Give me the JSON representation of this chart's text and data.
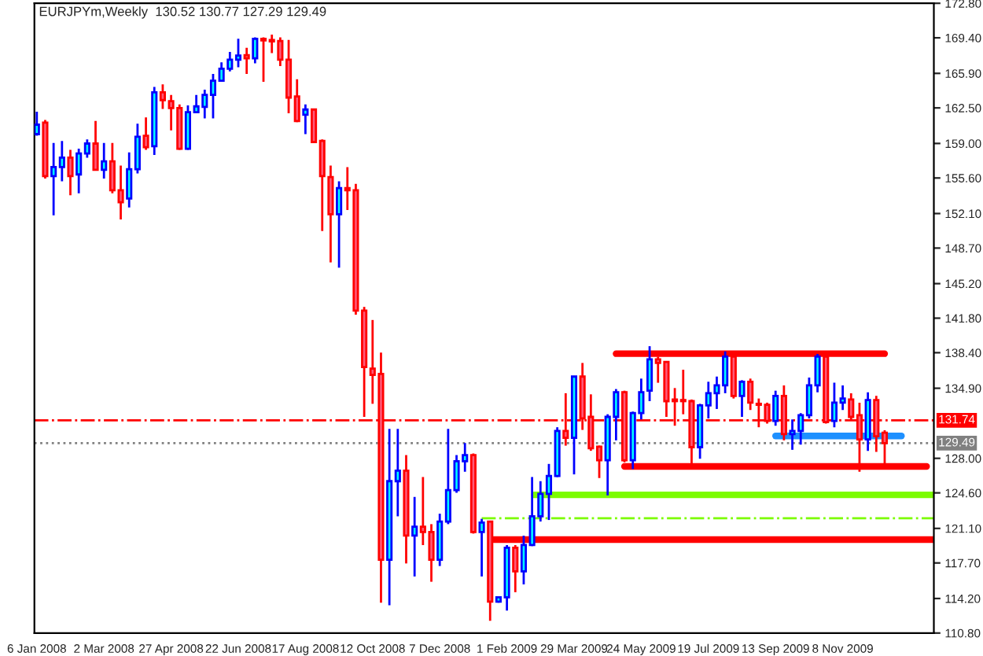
{
  "chart_data": {
    "type": "candlestick",
    "title": "EURJPYm,Weekly  130.52 130.77 127.29 129.49",
    "x": [
      "2008-01-06",
      "2008-01-13",
      "2008-01-20",
      "2008-01-27",
      "2008-02-03",
      "2008-02-10",
      "2008-02-17",
      "2008-02-24",
      "2008-03-02",
      "2008-03-09",
      "2008-03-16",
      "2008-03-23",
      "2008-03-30",
      "2008-04-06",
      "2008-04-13",
      "2008-04-20",
      "2008-04-27",
      "2008-05-04",
      "2008-05-11",
      "2008-05-18",
      "2008-05-25",
      "2008-06-01",
      "2008-06-08",
      "2008-06-15",
      "2008-06-22",
      "2008-06-29",
      "2008-07-06",
      "2008-07-13",
      "2008-07-20",
      "2008-07-27",
      "2008-08-03",
      "2008-08-10",
      "2008-08-17",
      "2008-08-24",
      "2008-08-31",
      "2008-09-07",
      "2008-09-14",
      "2008-09-21",
      "2008-09-28",
      "2008-10-05",
      "2008-10-12",
      "2008-10-19",
      "2008-10-26",
      "2008-11-02",
      "2008-11-09",
      "2008-11-16",
      "2008-11-23",
      "2008-11-30",
      "2008-12-07",
      "2008-12-14",
      "2008-12-21",
      "2008-12-28",
      "2009-01-04",
      "2009-01-11",
      "2009-01-18",
      "2009-01-25",
      "2009-02-01",
      "2009-02-08",
      "2009-02-15",
      "2009-02-22",
      "2009-03-01",
      "2009-03-08",
      "2009-03-15",
      "2009-03-22",
      "2009-03-29",
      "2009-04-05",
      "2009-04-12",
      "2009-04-19",
      "2009-04-26",
      "2009-05-03",
      "2009-05-10",
      "2009-05-17",
      "2009-05-24",
      "2009-05-31",
      "2009-06-07",
      "2009-06-14",
      "2009-06-21",
      "2009-06-28",
      "2009-07-05",
      "2009-07-12",
      "2009-07-19",
      "2009-07-26",
      "2009-08-02",
      "2009-08-09",
      "2009-08-16",
      "2009-08-23",
      "2009-08-30",
      "2009-09-06",
      "2009-09-13",
      "2009-09-20",
      "2009-09-27",
      "2009-10-04",
      "2009-10-11",
      "2009-10-18",
      "2009-10-25",
      "2009-11-01",
      "2009-11-08",
      "2009-11-15",
      "2009-11-22",
      "2009-11-29",
      "2009-12-06",
      "2009-12-13"
    ],
    "ohlc": [
      [
        159.92,
        162.13,
        159.76,
        160.85
      ],
      [
        161.05,
        161.31,
        155.54,
        155.79
      ],
      [
        155.79,
        159.04,
        151.93,
        156.67
      ],
      [
        156.67,
        159.25,
        155.28,
        157.6
      ],
      [
        157.6,
        158.37,
        153.89,
        155.79
      ],
      [
        155.95,
        158.48,
        154.09,
        158.01
      ],
      [
        158.01,
        159.4,
        157.6,
        158.99
      ],
      [
        158.99,
        161.21,
        156.31,
        156.41
      ],
      [
        156.41,
        159.04,
        155.54,
        157.24
      ],
      [
        157.24,
        159.04,
        154.09,
        154.4
      ],
      [
        154.4,
        156.82,
        151.52,
        153.22
      ],
      [
        153.58,
        158.11,
        152.7,
        156.46
      ],
      [
        156.46,
        160.95,
        156.05,
        159.66
      ],
      [
        159.76,
        161.57,
        158.37,
        158.63
      ],
      [
        158.73,
        164.56,
        157.86,
        164.04
      ],
      [
        164.04,
        164.81,
        162.39,
        163.27
      ],
      [
        163.16,
        163.78,
        160.28,
        162.49
      ],
      [
        162.49,
        162.85,
        158.37,
        158.48
      ],
      [
        158.48,
        162.75,
        158.37,
        162.08
      ],
      [
        162.08,
        163.78,
        161.98,
        162.65
      ],
      [
        162.6,
        164.3,
        161.46,
        163.78
      ],
      [
        163.78,
        165.84,
        161.46,
        165.17
      ],
      [
        165.17,
        166.98,
        165.07,
        166.36
      ],
      [
        166.36,
        168.01,
        166.1,
        167.24
      ],
      [
        167.24,
        169.3,
        166.51,
        167.65
      ],
      [
        167.7,
        168.42,
        165.84,
        167.39
      ],
      [
        167.39,
        169.45,
        166.88,
        169.3
      ],
      [
        169.3,
        169.45,
        165.07,
        169.14
      ],
      [
        169.19,
        169.71,
        167.9,
        169.04
      ],
      [
        169.09,
        169.45,
        166.62,
        167.24
      ],
      [
        167.24,
        169.19,
        161.98,
        163.52
      ],
      [
        163.63,
        165.33,
        161.1,
        161.21
      ],
      [
        161.82,
        162.85,
        159.92,
        162.34
      ],
      [
        162.34,
        162.39,
        159.04,
        159.14
      ],
      [
        159.25,
        159.4,
        150.38,
        155.79
      ],
      [
        155.69,
        156.82,
        147.29,
        152.03
      ],
      [
        152.03,
        155.28,
        146.77,
        154.61
      ],
      [
        154.61,
        156.67,
        152.45,
        154.4
      ],
      [
        154.4,
        155.02,
        142.14,
        142.55
      ],
      [
        142.55,
        142.91,
        132.08,
        136.98
      ],
      [
        136.83,
        141.62,
        133.37,
        136.21
      ],
      [
        136.31,
        138.42,
        113.79,
        118.02
      ],
      [
        118.02,
        130.9,
        113.53,
        125.75
      ],
      [
        125.75,
        130.9,
        122.29,
        126.78
      ],
      [
        126.78,
        128.32,
        117.65,
        120.39
      ],
      [
        120.39,
        124.2,
        116.37,
        121.26
      ],
      [
        121.26,
        126.16,
        119.46,
        120.75
      ],
      [
        120.75,
        121.52,
        115.85,
        118.02
      ],
      [
        118.02,
        122.55,
        117.4,
        121.78
      ],
      [
        121.78,
        130.9,
        121.52,
        124.87
      ],
      [
        124.87,
        128.32,
        124.61,
        127.71
      ],
      [
        127.71,
        129.51,
        126.68,
        128.32
      ],
      [
        128.32,
        128.48,
        120.59,
        120.75
      ],
      [
        120.75,
        122.04,
        116.37,
        121.68
      ],
      [
        121.78,
        121.78,
        112.0,
        113.89
      ],
      [
        113.89,
        114.41,
        113.79,
        114.31
      ],
      [
        114.31,
        119.46,
        113.02,
        119.2
      ],
      [
        119.2,
        119.46,
        114.82,
        116.88
      ],
      [
        116.88,
        120.39,
        115.59,
        119.46
      ],
      [
        119.46,
        126.16,
        119.36,
        122.29
      ],
      [
        122.29,
        125.75,
        121.78,
        124.51
      ],
      [
        124.51,
        127.45,
        121.93,
        126.26
      ],
      [
        126.26,
        131.06,
        126.16,
        130.69
      ],
      [
        130.69,
        134.41,
        129.25,
        130.02
      ],
      [
        130.02,
        136.05,
        126.42,
        136.05
      ],
      [
        136.05,
        137.39,
        130.8,
        131.93
      ],
      [
        132.08,
        134.3,
        128.74,
        129.0
      ],
      [
        129.15,
        129.25,
        126.06,
        127.81
      ],
      [
        127.81,
        132.34,
        124.35,
        132.08
      ],
      [
        132.08,
        134.82,
        129.77,
        134.51
      ],
      [
        134.51,
        134.66,
        127.61,
        127.81
      ],
      [
        127.81,
        132.6,
        126.94,
        132.45
      ],
      [
        132.45,
        135.85,
        131.83,
        134.51
      ],
      [
        134.66,
        139.04,
        133.63,
        137.75
      ],
      [
        137.75,
        138.01,
        135.44,
        137.39
      ],
      [
        137.5,
        137.5,
        132.08,
        133.63
      ],
      [
        133.79,
        134.92,
        131.21,
        133.63
      ],
      [
        133.74,
        136.72,
        132.34,
        133.63
      ],
      [
        133.63,
        133.79,
        127.45,
        129.1
      ],
      [
        129.1,
        133.37,
        127.96,
        133.22
      ],
      [
        133.22,
        135.54,
        131.93,
        134.41
      ],
      [
        134.41,
        136.05,
        132.86,
        135.18
      ],
      [
        135.18,
        138.53,
        134.41,
        138.01
      ],
      [
        138.01,
        138.12,
        133.89,
        134.15
      ],
      [
        134.15,
        135.69,
        132.08,
        135.54
      ],
      [
        135.54,
        135.85,
        132.76,
        133.48
      ],
      [
        133.37,
        133.89,
        131.06,
        133.27
      ],
      [
        133.27,
        133.48,
        131.42,
        131.68
      ],
      [
        131.68,
        134.66,
        131.21,
        134.15
      ],
      [
        134.15,
        135.18,
        129.77,
        130.39
      ],
      [
        130.39,
        131.83,
        128.84,
        130.69
      ],
      [
        130.69,
        132.45,
        129.36,
        132.24
      ],
      [
        132.24,
        135.95,
        131.93,
        135.18
      ],
      [
        135.18,
        138.27,
        134.51,
        138.01
      ],
      [
        138.01,
        138.12,
        131.42,
        131.57
      ],
      [
        131.68,
        135.44,
        131.06,
        133.48
      ],
      [
        133.48,
        135.18,
        132.76,
        133.89
      ],
      [
        133.79,
        134.41,
        131.83,
        132.08
      ],
      [
        132.24,
        133.48,
        126.68,
        129.87
      ],
      [
        129.87,
        134.51,
        128.74,
        133.74
      ],
      [
        133.74,
        134.15,
        128.63,
        130.18
      ],
      [
        130.52,
        130.77,
        127.29,
        129.49
      ]
    ],
    "series": [
      {
        "type": "line",
        "x": [
          "2009-05-03",
          "2009-12-13"
        ],
        "values": [
          138.3,
          138.3
        ],
        "color": "#ff0000"
      },
      {
        "type": "line",
        "x": [
          "2009-05-10",
          "2010-01-17"
        ],
        "values": [
          127.2,
          127.2
        ],
        "color": "#ff0000"
      },
      {
        "type": "line",
        "x": [
          "2009-01-21",
          "2010-01-23"
        ],
        "values": [
          120.0,
          120.0
        ],
        "color": "#ff0000"
      },
      {
        "type": "line",
        "x": [
          "2009-02-24",
          "2010-01-23"
        ],
        "values": [
          124.4,
          124.4
        ],
        "color": "#7cfc00"
      },
      {
        "type": "line",
        "x": [
          "2009-01-11",
          "2010-01-23"
        ],
        "values": [
          122.1,
          122.1
        ],
        "color": "#7cfc00",
        "line_style": "dashed"
      },
      {
        "type": "line",
        "x": [
          "2009-09-13",
          "2009-12-27"
        ],
        "values": [
          130.2,
          130.2
        ],
        "color": "#1e90ff"
      }
    ],
    "ref_lines": [
      {
        "axis": "y",
        "value": 131.74,
        "label": "131.74",
        "color": "#ff0000",
        "line_style": "dashed"
      },
      {
        "axis": "y",
        "value": 129.49,
        "label": "129.49",
        "color": "#808080",
        "line_style": "dotted"
      }
    ],
    "xlim": [
      "2008-01-04",
      "2010-01-23"
    ],
    "xticks": [
      {
        "value": "2008-01-06",
        "label": "6 Jan 2008"
      },
      {
        "value": "2008-03-02",
        "label": "2 Mar 2008"
      },
      {
        "value": "2008-04-27",
        "label": "27 Apr 2008"
      },
      {
        "value": "2008-06-22",
        "label": "22 Jun 2008"
      },
      {
        "value": "2008-08-17",
        "label": "17 Aug 2008"
      },
      {
        "value": "2008-10-12",
        "label": "12 Oct 2008"
      },
      {
        "value": "2008-12-07",
        "label": "7 Dec 2008"
      },
      {
        "value": "2009-02-01",
        "label": "1 Feb 2009"
      },
      {
        "value": "2009-03-29",
        "label": "29 Mar 2009"
      },
      {
        "value": "2009-05-24",
        "label": "24 May 2009"
      },
      {
        "value": "2009-07-19",
        "label": "19 Jul 2009"
      },
      {
        "value": "2009-09-13",
        "label": "13 Sep 2009"
      },
      {
        "value": "2009-11-08",
        "label": "8 Nov 2009"
      }
    ],
    "ylim": [
      110.8,
      172.8
    ],
    "yticks": [
      {
        "value": 110.8,
        "label": "110.80"
      },
      {
        "value": 114.2,
        "label": "114.20"
      },
      {
        "value": 117.7,
        "label": "117.70"
      },
      {
        "value": 121.1,
        "label": "121.10"
      },
      {
        "value": 124.6,
        "label": "124.60"
      },
      {
        "value": 128.0,
        "label": "128.00"
      },
      {
        "value": 134.9,
        "label": "134.90"
      },
      {
        "value": 138.4,
        "label": "138.40"
      },
      {
        "value": 141.8,
        "label": "141.80"
      },
      {
        "value": 145.2,
        "label": "145.20"
      },
      {
        "value": 148.7,
        "label": "148.70"
      },
      {
        "value": 152.1,
        "label": "152.10"
      },
      {
        "value": 155.6,
        "label": "155.60"
      },
      {
        "value": 159.0,
        "label": "159.00"
      },
      {
        "value": 162.5,
        "label": "162.50"
      },
      {
        "value": 165.9,
        "label": "165.90"
      },
      {
        "value": 169.4,
        "label": "169.40"
      },
      {
        "value": 172.8,
        "label": "172.80"
      }
    ]
  }
}
